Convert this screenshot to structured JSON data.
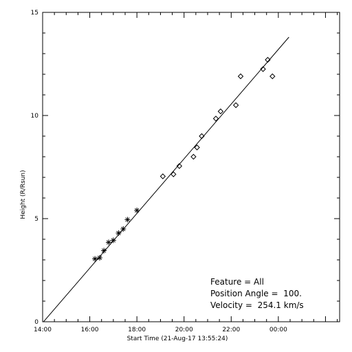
{
  "chart_data": {
    "type": "scatter",
    "title": "",
    "xlabel": "Start Time (21-Aug-17 13:55:24)",
    "ylabel": "Height (R/Rsun)",
    "x_unit": "hours (clock time, continuing past midnight)",
    "xlim": [
      14.0,
      26.6
    ],
    "ylim": [
      0,
      15
    ],
    "x_ticks": [
      {
        "value": 14,
        "label": "14:00"
      },
      {
        "value": 16,
        "label": "16:00"
      },
      {
        "value": 18,
        "label": "18:00"
      },
      {
        "value": 20,
        "label": "20:00"
      },
      {
        "value": 22,
        "label": "22:00"
      },
      {
        "value": 24,
        "label": "00:00"
      }
    ],
    "y_ticks": [
      {
        "value": 0,
        "label": "0"
      },
      {
        "value": 5,
        "label": "5"
      },
      {
        "value": 10,
        "label": "10"
      },
      {
        "value": 15,
        "label": "15"
      }
    ],
    "grid": false,
    "series": [
      {
        "marker": "asterisk",
        "x": [
          16.22,
          16.42,
          16.6,
          16.8,
          17.0,
          17.22,
          17.42,
          17.6,
          18.0
        ],
        "y": [
          3.05,
          3.1,
          3.45,
          3.85,
          3.95,
          4.3,
          4.5,
          4.95,
          5.4
        ]
      },
      {
        "marker": "diamond",
        "x": [
          19.1,
          19.55,
          19.8,
          20.4,
          20.55,
          20.75,
          21.35,
          21.55,
          22.2,
          22.4,
          23.35,
          23.55,
          23.75
        ],
        "y": [
          7.05,
          7.15,
          7.55,
          8.0,
          8.45,
          9.0,
          9.85,
          10.2,
          10.5,
          11.9,
          12.25,
          12.7,
          11.9
        ]
      },
      {
        "type": "line",
        "x": [
          14.0,
          24.45
        ],
        "y": [
          -0.05,
          13.8
        ]
      }
    ],
    "annotations": [
      "Feature = All",
      "Position Angle =  100.",
      "Velocity =  254.1 km/s"
    ]
  }
}
